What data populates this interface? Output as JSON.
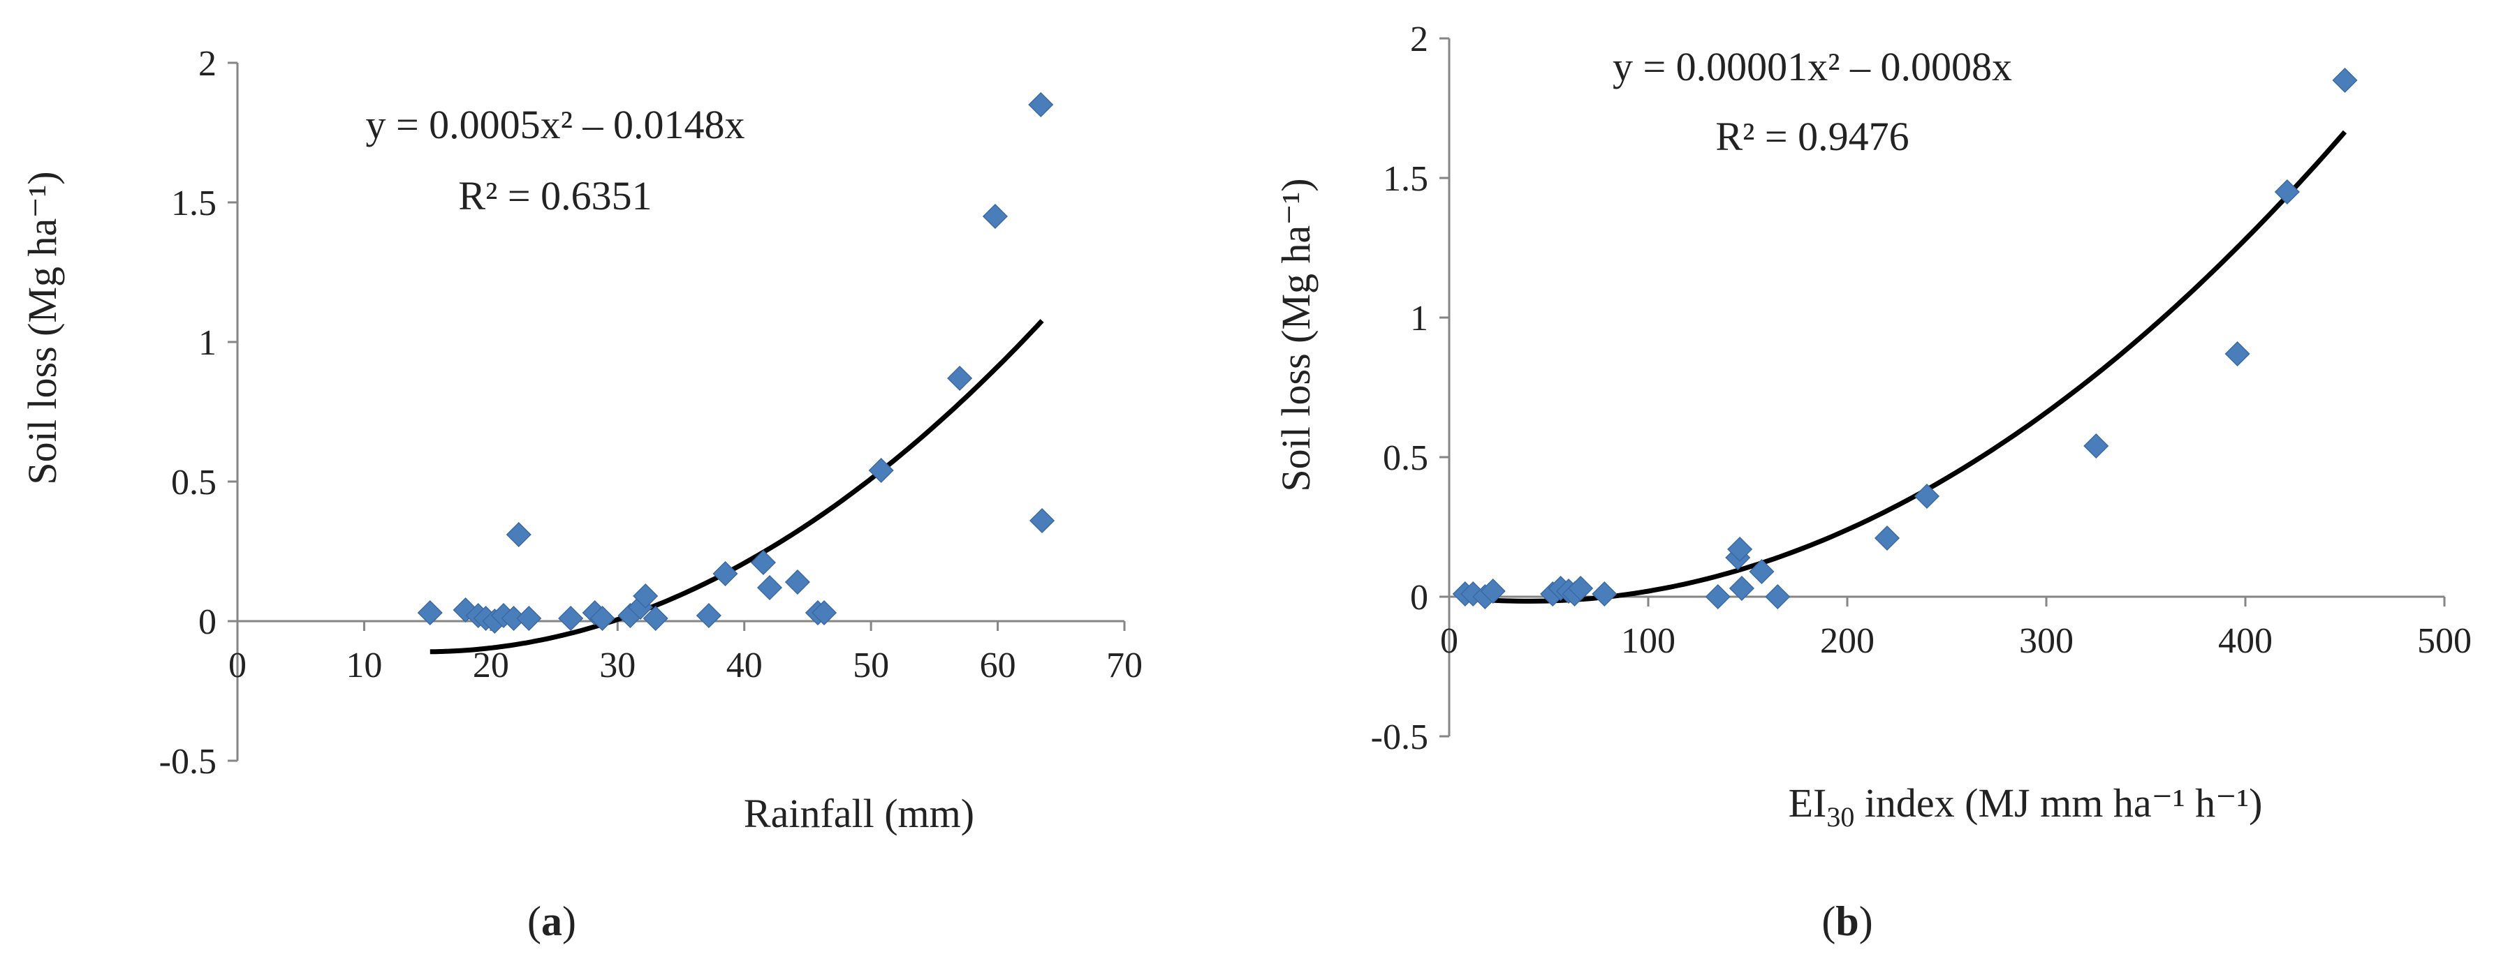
{
  "colors": {
    "marker": "#4a7ebb",
    "curve": "#000000",
    "axis": "#868686",
    "text": "#222222"
  },
  "panels": [
    {
      "label_prefix": "(",
      "label_letter": "a",
      "label_suffix": ")",
      "equation": "y = 0.0005x² – 0.0148x",
      "r2": "R² = 0.6351",
      "ylabel": "Soil loss (Mg ha⁻¹)",
      "xlabel": "Rainfall (mm)"
    },
    {
      "label_prefix": "(",
      "label_letter": "b",
      "label_suffix": ")",
      "equation": "y = 0.00001x² – 0.0008x",
      "r2": "R² = 0.9476",
      "ylabel": "Soil loss (Mg ha⁻¹)",
      "xlabel_main": "EI",
      "xlabel_sub": "30",
      "xlabel_rest": " index (MJ mm ha⁻¹ h⁻¹)"
    }
  ],
  "chart_data": [
    {
      "type": "scatter",
      "title": "",
      "xlabel": "Rainfall (mm)",
      "ylabel": "Soil loss (Mg ha⁻¹)",
      "xlim": [
        0,
        70
      ],
      "ylim": [
        -0.5,
        2
      ],
      "xticks": [
        0,
        10,
        20,
        30,
        40,
        50,
        60,
        70
      ],
      "yticks": [
        -0.5,
        0,
        0.5,
        1,
        1.5,
        2
      ],
      "xtick_labels": [
        "0",
        "10",
        "20",
        "30",
        "40",
        "50",
        "60",
        "70"
      ],
      "ytick_labels": [
        "-0.5",
        "0",
        "0.5",
        "1",
        "1.5",
        "2"
      ],
      "grid": false,
      "points": [
        [
          15.2,
          0.03
        ],
        [
          18.0,
          0.04
        ],
        [
          19.0,
          0.02
        ],
        [
          19.6,
          0.01
        ],
        [
          20.3,
          0.0
        ],
        [
          21.0,
          0.02
        ],
        [
          21.8,
          0.01
        ],
        [
          22.2,
          0.31
        ],
        [
          23.0,
          0.01
        ],
        [
          26.3,
          0.01
        ],
        [
          28.2,
          0.03
        ],
        [
          28.8,
          0.01
        ],
        [
          31.0,
          0.02
        ],
        [
          31.8,
          0.05
        ],
        [
          32.2,
          0.09
        ],
        [
          33.0,
          0.01
        ],
        [
          37.2,
          0.02
        ],
        [
          38.5,
          0.17
        ],
        [
          41.5,
          0.21
        ],
        [
          42.0,
          0.12
        ],
        [
          44.2,
          0.14
        ],
        [
          45.8,
          0.03
        ],
        [
          46.3,
          0.03
        ],
        [
          50.8,
          0.54
        ],
        [
          57.0,
          0.87
        ],
        [
          59.8,
          1.45
        ],
        [
          63.4,
          1.85
        ],
        [
          63.5,
          0.36
        ]
      ],
      "trendline": {
        "kind": "poly2",
        "a": 0.0005,
        "b": -0.0148,
        "c": 0,
        "x_from": 15.2,
        "x_to": 63.5
      },
      "annotations": [
        "y = 0.0005x² – 0.0148x",
        "R² = 0.6351"
      ]
    },
    {
      "type": "scatter",
      "title": "",
      "xlabel": "EI30 index (MJ mm ha⁻¹ h⁻¹)",
      "ylabel": "Soil loss (Mg ha⁻¹)",
      "xlim": [
        0,
        500
      ],
      "ylim": [
        -0.5,
        2
      ],
      "xticks": [
        0,
        100,
        200,
        300,
        400,
        500
      ],
      "yticks": [
        -0.5,
        0,
        0.5,
        1,
        1.5,
        2
      ],
      "xtick_labels": [
        "0",
        "100",
        "200",
        "300",
        "400",
        "500"
      ],
      "ytick_labels": [
        "-0.5",
        "0",
        "0.5",
        "1",
        "1.5",
        "2"
      ],
      "grid": false,
      "points": [
        [
          8,
          0.01
        ],
        [
          12,
          0.01
        ],
        [
          18,
          0.0
        ],
        [
          22,
          0.02
        ],
        [
          52,
          0.01
        ],
        [
          56,
          0.03
        ],
        [
          60,
          0.02
        ],
        [
          63,
          0.01
        ],
        [
          66,
          0.03
        ],
        [
          78,
          0.01
        ],
        [
          135,
          0.0
        ],
        [
          145,
          0.14
        ],
        [
          146,
          0.17
        ],
        [
          147,
          0.03
        ],
        [
          157,
          0.09
        ],
        [
          165,
          0.0
        ],
        [
          220,
          0.21
        ],
        [
          240,
          0.36
        ],
        [
          325,
          0.54
        ],
        [
          396,
          0.87
        ],
        [
          421,
          1.45
        ],
        [
          450,
          1.85
        ]
      ],
      "trendline": {
        "kind": "poly2",
        "a": 1e-05,
        "b": -0.0008,
        "c": 0,
        "x_from": 8,
        "x_to": 450
      },
      "annotations": [
        "y = 0.00001x² – 0.0008x",
        "R² = 0.9476"
      ]
    }
  ]
}
